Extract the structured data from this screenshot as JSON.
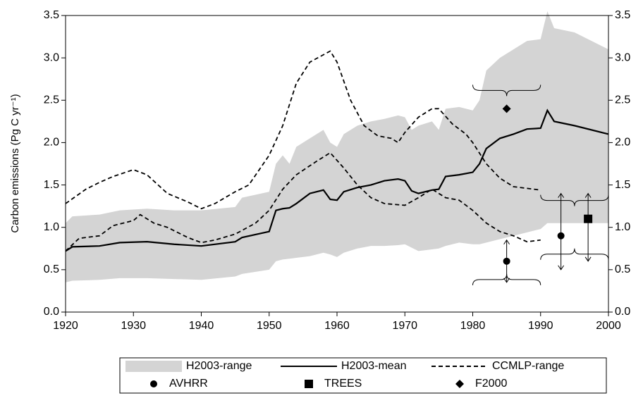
{
  "chart_data": {
    "type": "line",
    "ylabel": "Carbon emissions (Pg C yr⁻¹)",
    "xlim": [
      1920,
      2000
    ],
    "xticks": [
      1920,
      1930,
      1940,
      1950,
      1960,
      1970,
      1980,
      1990,
      2000
    ],
    "ylim": [
      0,
      3.5
    ],
    "yticks": [
      {
        "value": 0,
        "label": "0.0"
      },
      {
        "value": 0.5,
        "label": "0.5"
      },
      {
        "value": 1,
        "label": "1.0"
      },
      {
        "value": 1.5,
        "label": "1.5"
      },
      {
        "value": 2,
        "label": "2.0"
      },
      {
        "value": 2.5,
        "label": "2.5"
      },
      {
        "value": 3,
        "label": "3.0"
      },
      {
        "value": 3.5,
        "label": "3.5"
      }
    ],
    "right_axis": true,
    "x": [
      1920,
      1921,
      1925,
      1928,
      1932,
      1936,
      1940,
      1945,
      1946,
      1950,
      1951,
      1952,
      1953,
      1954,
      1956,
      1958,
      1959,
      1960,
      1961,
      1963,
      1965,
      1967,
      1969,
      1970,
      1971,
      1972,
      1974,
      1975,
      1976,
      1978,
      1980,
      1981,
      1982,
      1984,
      1986,
      1988,
      1990,
      1991,
      1992,
      1995,
      2000
    ],
    "series": [
      {
        "name": "H2003-range",
        "style": "area",
        "color": "#d4d4d4",
        "upper": [
          1.05,
          1.13,
          1.15,
          1.2,
          1.22,
          1.2,
          1.2,
          1.24,
          1.35,
          1.42,
          1.75,
          1.85,
          1.75,
          1.95,
          2.05,
          2.15,
          2.0,
          1.95,
          2.1,
          2.2,
          2.25,
          2.28,
          2.32,
          2.3,
          2.15,
          2.2,
          2.25,
          2.15,
          2.4,
          2.42,
          2.38,
          2.5,
          2.85,
          3.0,
          3.1,
          3.2,
          3.22,
          3.55,
          3.35,
          3.3,
          3.1
        ],
        "lower": [
          0.35,
          0.37,
          0.38,
          0.4,
          0.4,
          0.39,
          0.38,
          0.42,
          0.45,
          0.5,
          0.6,
          0.62,
          0.63,
          0.64,
          0.66,
          0.7,
          0.68,
          0.65,
          0.7,
          0.75,
          0.78,
          0.78,
          0.79,
          0.8,
          0.76,
          0.72,
          0.74,
          0.75,
          0.78,
          0.82,
          0.8,
          0.8,
          0.82,
          0.86,
          0.9,
          0.94,
          0.98,
          1.05,
          1.05,
          1.05,
          1.05
        ]
      },
      {
        "name": "H2003-mean",
        "style": "solid",
        "color": "#000000",
        "values": [
          0.72,
          0.77,
          0.78,
          0.82,
          0.83,
          0.8,
          0.78,
          0.83,
          0.88,
          0.95,
          1.2,
          1.22,
          1.23,
          1.28,
          1.4,
          1.44,
          1.33,
          1.32,
          1.42,
          1.47,
          1.5,
          1.55,
          1.57,
          1.55,
          1.43,
          1.4,
          1.44,
          1.45,
          1.6,
          1.62,
          1.65,
          1.75,
          1.93,
          2.05,
          2.1,
          2.16,
          2.17,
          2.38,
          2.25,
          2.2,
          2.1
        ]
      },
      {
        "name": "CCMLP-range",
        "style": "dashed",
        "color": "#000000",
        "upper": {
          "x": [
            1920,
            1923,
            1925,
            1927,
            1930,
            1932,
            1935,
            1938,
            1940,
            1942,
            1945,
            1947,
            1950,
            1952,
            1954,
            1956,
            1959,
            1960,
            1962,
            1964,
            1966,
            1968,
            1969,
            1970,
            1972,
            1974,
            1975,
            1977,
            1979,
            1980,
            1982,
            1984,
            1986,
            1988,
            1990
          ],
          "values": [
            1.28,
            1.45,
            1.53,
            1.6,
            1.68,
            1.62,
            1.4,
            1.3,
            1.22,
            1.28,
            1.42,
            1.5,
            1.85,
            2.2,
            2.7,
            2.95,
            3.08,
            2.95,
            2.5,
            2.2,
            2.08,
            2.05,
            2.0,
            2.12,
            2.3,
            2.4,
            2.4,
            2.22,
            2.1,
            2.0,
            1.75,
            1.58,
            1.48,
            1.46,
            1.44
          ]
        },
        "lower": {
          "x": [
            1920,
            1922,
            1925,
            1927,
            1930,
            1931,
            1933,
            1935,
            1938,
            1940,
            1942,
            1945,
            1948,
            1950,
            1952,
            1954,
            1957,
            1959,
            1961,
            1963,
            1965,
            1967,
            1970,
            1972,
            1974,
            1976,
            1978,
            1980,
            1982,
            1984,
            1986,
            1988,
            1990
          ],
          "values": [
            0.72,
            0.87,
            0.9,
            1.02,
            1.08,
            1.15,
            1.05,
            1.0,
            0.88,
            0.82,
            0.85,
            0.92,
            1.05,
            1.2,
            1.45,
            1.62,
            1.78,
            1.88,
            1.7,
            1.5,
            1.35,
            1.28,
            1.26,
            1.35,
            1.45,
            1.35,
            1.32,
            1.2,
            1.05,
            0.95,
            0.9,
            0.83,
            0.85
          ]
        }
      }
    ],
    "observations": [
      {
        "name": "AVHRR",
        "marker": "circle",
        "color": "#000000",
        "x": [
          1985,
          1993
        ],
        "values": [
          0.6,
          0.9
        ],
        "low": [
          0.35,
          0.5
        ],
        "high": [
          0.85,
          1.4
        ],
        "period_start": [
          1980,
          1990
        ],
        "period_end": [
          1990,
          2000
        ]
      },
      {
        "name": "TREES",
        "marker": "square",
        "color": "#000000",
        "x": [
          1997
        ],
        "values": [
          1.1
        ],
        "low": [
          0.6
        ],
        "high": [
          1.4
        ],
        "period_start": [
          1990
        ],
        "period_end": [
          2000
        ]
      },
      {
        "name": "F2000",
        "marker": "diamond",
        "color": "#000000",
        "x": [
          1985
        ],
        "values": [
          2.4
        ],
        "period_start": [
          1980
        ],
        "period_end": [
          1990
        ]
      }
    ]
  }
}
